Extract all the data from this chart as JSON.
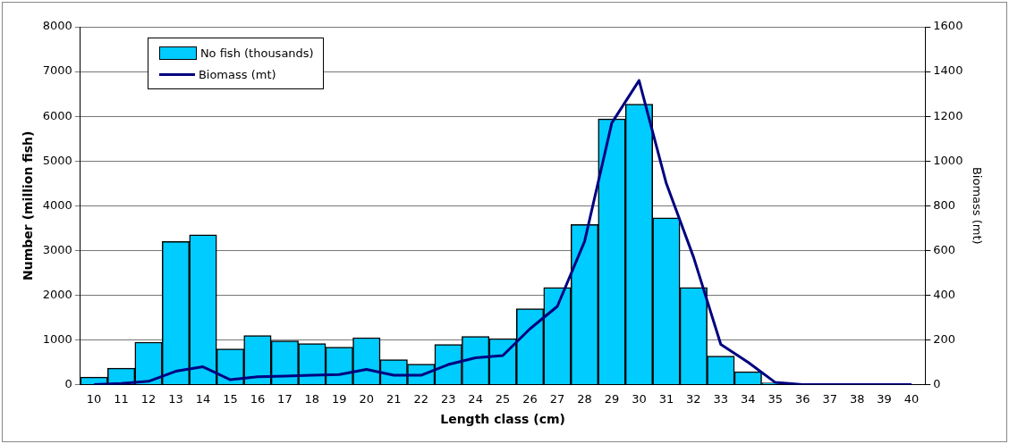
{
  "chart_data": {
    "type": "bar",
    "xlabel": "Length class (cm)",
    "ylabel": "Number (million fish)",
    "y2label": "Biomass (mt)",
    "categories": [
      "10",
      "11",
      "12",
      "13",
      "14",
      "15",
      "16",
      "17",
      "18",
      "19",
      "20",
      "21",
      "22",
      "23",
      "24",
      "25",
      "26",
      "27",
      "28",
      "29",
      "30",
      "31",
      "32",
      "33",
      "34",
      "35",
      "36",
      "37",
      "38",
      "39",
      "40"
    ],
    "series": [
      {
        "name": "No fish (thousands)",
        "color": "#00ccff",
        "values": [
          170,
          370,
          950,
          3200,
          3350,
          800,
          1100,
          980,
          920,
          840,
          1050,
          560,
          460,
          900,
          1080,
          1030,
          1700,
          2170,
          3580,
          5940,
          6270,
          3730,
          2170,
          640,
          290,
          40,
          0,
          0,
          0,
          0,
          0
        ]
      },
      {
        "name": "Biomass (mt)",
        "type": "line",
        "axis": "y2",
        "color": "#000080",
        "values": [
          0,
          5,
          15,
          60,
          80,
          22,
          35,
          38,
          42,
          45,
          68,
          42,
          42,
          90,
          120,
          130,
          250,
          350,
          640,
          1170,
          1360,
          900,
          570,
          180,
          100,
          10,
          0,
          0,
          0,
          0,
          0
        ]
      }
    ],
    "ylim": [
      0,
      8000
    ],
    "yticks": [
      0,
      1000,
      2000,
      3000,
      4000,
      5000,
      6000,
      7000,
      8000
    ],
    "y2lim": [
      0,
      1600
    ],
    "y2ticks": [
      0,
      200,
      400,
      600,
      800,
      1000,
      1200,
      1400,
      1600
    ],
    "grid": "y",
    "legend": "top left",
    "marker": "none",
    "line_style": "solid"
  }
}
